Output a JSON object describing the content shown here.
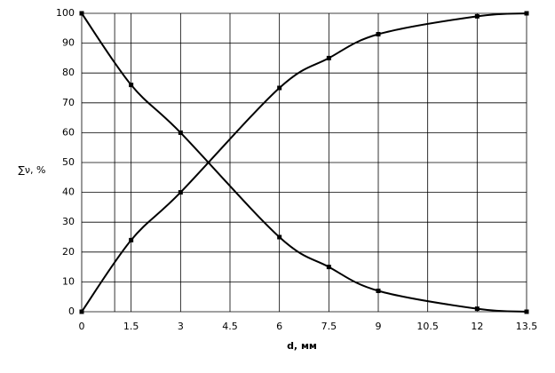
{
  "chart_data": {
    "type": "line",
    "x_label": "d, мм",
    "y_label": "∑ν, %",
    "series": [
      {
        "color": "#000000",
        "x": [
          0,
          1.5,
          3,
          6,
          7.5,
          9,
          12,
          13.5
        ],
        "values": [
          100,
          76,
          60,
          25,
          15,
          7,
          1,
          0
        ]
      },
      {
        "color": "#000000",
        "x": [
          0,
          1.5,
          3,
          6,
          7.5,
          9,
          12,
          13.5
        ],
        "values": [
          0,
          24,
          40,
          75,
          85,
          93,
          99,
          100
        ]
      }
    ],
    "xlim": [
      0,
      13.5
    ],
    "xticks": [
      0,
      1.5,
      3,
      4.5,
      6,
      7.5,
      9,
      10.5,
      12,
      13.5
    ],
    "extra_x_gridlines": [
      1
    ],
    "ylim": [
      0,
      100
    ],
    "yticks": [
      0,
      10,
      20,
      30,
      40,
      50,
      60,
      70,
      80,
      90,
      100
    ],
    "grid": true
  }
}
